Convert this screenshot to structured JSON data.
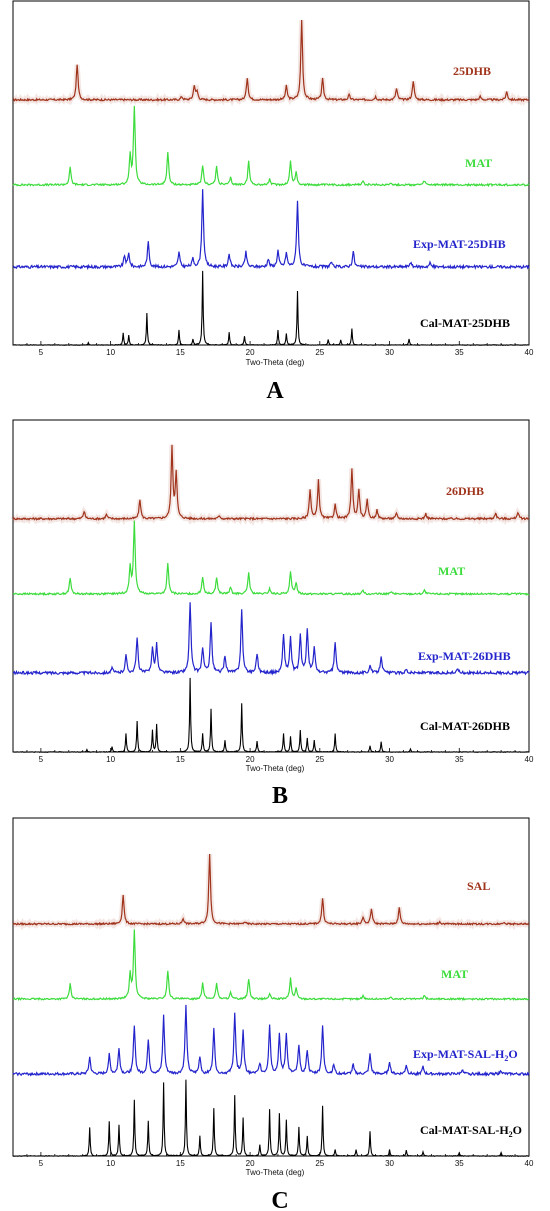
{
  "chart_data": [
    {
      "type": "line",
      "panel_label": "A",
      "xlabel": "Two-Theta (deg)",
      "xlim": [
        3,
        40
      ],
      "x_ticks": [
        "5",
        "10",
        "15",
        "20",
        "25",
        "30",
        "35",
        "40"
      ],
      "grid": false,
      "series": [
        {
          "name": "25DHB",
          "color": "#a0331c",
          "peaks": [
            {
              "x": 7.6,
              "h": 0.45
            },
            {
              "x": 15.1,
              "h": 0.04
            },
            {
              "x": 16.0,
              "h": 0.18
            },
            {
              "x": 16.2,
              "h": 0.1
            },
            {
              "x": 19.8,
              "h": 0.28
            },
            {
              "x": 22.6,
              "h": 0.17
            },
            {
              "x": 23.7,
              "h": 1.0
            },
            {
              "x": 25.2,
              "h": 0.26
            },
            {
              "x": 27.1,
              "h": 0.06
            },
            {
              "x": 29.0,
              "h": 0.04
            },
            {
              "x": 30.5,
              "h": 0.14
            },
            {
              "x": 31.7,
              "h": 0.24
            },
            {
              "x": 36.5,
              "h": 0.04
            },
            {
              "x": 38.4,
              "h": 0.1
            }
          ]
        },
        {
          "name": "MAT",
          "color": "#3ddc3d",
          "peaks": [
            {
              "x": 7.1,
              "h": 0.22
            },
            {
              "x": 11.4,
              "h": 0.36
            },
            {
              "x": 11.7,
              "h": 1.0
            },
            {
              "x": 14.1,
              "h": 0.42
            },
            {
              "x": 16.6,
              "h": 0.24
            },
            {
              "x": 17.6,
              "h": 0.23
            },
            {
              "x": 18.6,
              "h": 0.09
            },
            {
              "x": 19.9,
              "h": 0.3
            },
            {
              "x": 21.4,
              "h": 0.07
            },
            {
              "x": 22.9,
              "h": 0.3
            },
            {
              "x": 23.3,
              "h": 0.16
            },
            {
              "x": 28.1,
              "h": 0.05
            },
            {
              "x": 30.1,
              "h": 0.03
            },
            {
              "x": 32.5,
              "h": 0.05
            }
          ]
        },
        {
          "name": "Exp-MAT-25DHB",
          "color": "#2424cc",
          "peaks": [
            {
              "x": 11.0,
              "h": 0.14
            },
            {
              "x": 11.3,
              "h": 0.17
            },
            {
              "x": 12.7,
              "h": 0.32
            },
            {
              "x": 14.9,
              "h": 0.19
            },
            {
              "x": 15.9,
              "h": 0.1
            },
            {
              "x": 16.6,
              "h": 1.0
            },
            {
              "x": 18.5,
              "h": 0.17
            },
            {
              "x": 19.7,
              "h": 0.19
            },
            {
              "x": 21.3,
              "h": 0.1
            },
            {
              "x": 22.0,
              "h": 0.21
            },
            {
              "x": 22.6,
              "h": 0.18
            },
            {
              "x": 23.4,
              "h": 0.86
            },
            {
              "x": 25.8,
              "h": 0.06
            },
            {
              "x": 27.4,
              "h": 0.2
            },
            {
              "x": 31.5,
              "h": 0.06
            },
            {
              "x": 32.9,
              "h": 0.05
            }
          ]
        },
        {
          "name": "Cal-MAT-25DHB",
          "color": "#000000",
          "peaks": [
            {
              "x": 8.4,
              "h": 0.03
            },
            {
              "x": 10.9,
              "h": 0.16
            },
            {
              "x": 11.3,
              "h": 0.13
            },
            {
              "x": 12.6,
              "h": 0.43
            },
            {
              "x": 14.9,
              "h": 0.2
            },
            {
              "x": 15.9,
              "h": 0.08
            },
            {
              "x": 16.6,
              "h": 1.0
            },
            {
              "x": 18.5,
              "h": 0.17
            },
            {
              "x": 19.6,
              "h": 0.12
            },
            {
              "x": 22.0,
              "h": 0.2
            },
            {
              "x": 22.6,
              "h": 0.15
            },
            {
              "x": 23.4,
              "h": 0.73
            },
            {
              "x": 25.6,
              "h": 0.07
            },
            {
              "x": 26.5,
              "h": 0.07
            },
            {
              "x": 27.3,
              "h": 0.22
            },
            {
              "x": 31.4,
              "h": 0.08
            }
          ]
        }
      ]
    },
    {
      "type": "line",
      "panel_label": "B",
      "xlabel": "Two-Theta (deg)",
      "xlim": [
        3,
        40
      ],
      "x_ticks": [
        "5",
        "10",
        "15",
        "20",
        "25",
        "30",
        "35",
        "40"
      ],
      "grid": false,
      "series": [
        {
          "name": "26DHB",
          "color": "#a0331c",
          "peaks": [
            {
              "x": 8.1,
              "h": 0.09
            },
            {
              "x": 9.7,
              "h": 0.05
            },
            {
              "x": 12.1,
              "h": 0.23
            },
            {
              "x": 14.4,
              "h": 0.85
            },
            {
              "x": 14.7,
              "h": 0.55
            },
            {
              "x": 17.8,
              "h": 0.04
            },
            {
              "x": 24.3,
              "h": 0.35
            },
            {
              "x": 24.9,
              "h": 0.46
            },
            {
              "x": 26.1,
              "h": 0.17
            },
            {
              "x": 27.3,
              "h": 0.6
            },
            {
              "x": 27.8,
              "h": 0.35
            },
            {
              "x": 28.4,
              "h": 0.22
            },
            {
              "x": 29.1,
              "h": 0.1
            },
            {
              "x": 30.5,
              "h": 0.06
            },
            {
              "x": 32.6,
              "h": 0.06
            },
            {
              "x": 37.6,
              "h": 0.07
            },
            {
              "x": 39.2,
              "h": 0.08
            }
          ]
        },
        {
          "name": "MAT",
          "color": "#3ddc3d",
          "peaks": [
            {
              "x": 7.1,
              "h": 0.22
            },
            {
              "x": 11.4,
              "h": 0.36
            },
            {
              "x": 11.7,
              "h": 1.0
            },
            {
              "x": 14.1,
              "h": 0.42
            },
            {
              "x": 16.6,
              "h": 0.24
            },
            {
              "x": 17.6,
              "h": 0.23
            },
            {
              "x": 18.6,
              "h": 0.09
            },
            {
              "x": 19.9,
              "h": 0.3
            },
            {
              "x": 21.4,
              "h": 0.07
            },
            {
              "x": 22.9,
              "h": 0.3
            },
            {
              "x": 23.3,
              "h": 0.16
            },
            {
              "x": 28.1,
              "h": 0.05
            },
            {
              "x": 30.1,
              "h": 0.03
            },
            {
              "x": 32.5,
              "h": 0.05
            }
          ]
        },
        {
          "name": "Exp-MAT-26DHB",
          "color": "#2424cc",
          "peaks": [
            {
              "x": 10.1,
              "h": 0.06
            },
            {
              "x": 11.1,
              "h": 0.23
            },
            {
              "x": 11.9,
              "h": 0.46
            },
            {
              "x": 13.0,
              "h": 0.33
            },
            {
              "x": 13.3,
              "h": 0.37
            },
            {
              "x": 15.7,
              "h": 0.93
            },
            {
              "x": 16.6,
              "h": 0.33
            },
            {
              "x": 17.2,
              "h": 0.66
            },
            {
              "x": 18.2,
              "h": 0.23
            },
            {
              "x": 19.4,
              "h": 0.83
            },
            {
              "x": 20.5,
              "h": 0.26
            },
            {
              "x": 22.4,
              "h": 0.51
            },
            {
              "x": 22.9,
              "h": 0.46
            },
            {
              "x": 23.6,
              "h": 0.5
            },
            {
              "x": 24.1,
              "h": 0.58
            },
            {
              "x": 24.6,
              "h": 0.33
            },
            {
              "x": 26.1,
              "h": 0.4
            },
            {
              "x": 28.6,
              "h": 0.1
            },
            {
              "x": 29.4,
              "h": 0.23
            },
            {
              "x": 31.2,
              "h": 0.05
            },
            {
              "x": 34.9,
              "h": 0.06
            }
          ]
        },
        {
          "name": "Cal-MAT-26DHB",
          "color": "#000000",
          "peaks": [
            {
              "x": 8.3,
              "h": 0.03
            },
            {
              "x": 10.1,
              "h": 0.07
            },
            {
              "x": 11.1,
              "h": 0.25
            },
            {
              "x": 11.9,
              "h": 0.42
            },
            {
              "x": 13.0,
              "h": 0.29
            },
            {
              "x": 13.3,
              "h": 0.37
            },
            {
              "x": 15.7,
              "h": 1.0
            },
            {
              "x": 16.6,
              "h": 0.25
            },
            {
              "x": 17.2,
              "h": 0.58
            },
            {
              "x": 18.2,
              "h": 0.16
            },
            {
              "x": 19.4,
              "h": 0.66
            },
            {
              "x": 20.5,
              "h": 0.15
            },
            {
              "x": 22.4,
              "h": 0.25
            },
            {
              "x": 22.9,
              "h": 0.21
            },
            {
              "x": 23.6,
              "h": 0.29
            },
            {
              "x": 24.1,
              "h": 0.19
            },
            {
              "x": 24.6,
              "h": 0.16
            },
            {
              "x": 26.1,
              "h": 0.25
            },
            {
              "x": 28.6,
              "h": 0.08
            },
            {
              "x": 29.4,
              "h": 0.14
            },
            {
              "x": 31.5,
              "h": 0.04
            }
          ]
        }
      ]
    },
    {
      "type": "line",
      "panel_label": "C",
      "xlabel": "Two-Theta (deg)",
      "xlim": [
        3,
        40
      ],
      "x_ticks": [
        "5",
        "10",
        "15",
        "20",
        "25",
        "30",
        "35",
        "40"
      ],
      "grid": false,
      "series": [
        {
          "name": "SAL",
          "color": "#a0331c",
          "peaks": [
            {
              "x": 10.9,
              "h": 0.42
            },
            {
              "x": 15.2,
              "h": 0.08
            },
            {
              "x": 17.1,
              "h": 1.0
            },
            {
              "x": 19.6,
              "h": 0.03
            },
            {
              "x": 25.2,
              "h": 0.37
            },
            {
              "x": 28.1,
              "h": 0.1
            },
            {
              "x": 28.7,
              "h": 0.22
            },
            {
              "x": 30.7,
              "h": 0.23
            },
            {
              "x": 33.6,
              "h": 0.03
            },
            {
              "x": 38.2,
              "h": 0.03
            }
          ]
        },
        {
          "name": "MAT",
          "color": "#3ddc3d",
          "peaks": [
            {
              "x": 7.1,
              "h": 0.22
            },
            {
              "x": 11.4,
              "h": 0.36
            },
            {
              "x": 11.7,
              "h": 1.0
            },
            {
              "x": 14.1,
              "h": 0.42
            },
            {
              "x": 16.6,
              "h": 0.24
            },
            {
              "x": 17.6,
              "h": 0.23
            },
            {
              "x": 18.6,
              "h": 0.09
            },
            {
              "x": 19.9,
              "h": 0.3
            },
            {
              "x": 21.4,
              "h": 0.07
            },
            {
              "x": 22.9,
              "h": 0.3
            },
            {
              "x": 23.3,
              "h": 0.16
            },
            {
              "x": 28.1,
              "h": 0.05
            },
            {
              "x": 30.1,
              "h": 0.03
            },
            {
              "x": 32.5,
              "h": 0.05
            }
          ]
        },
        {
          "name": "Exp-MAT-SAL-H2O",
          "color": "#2424cc",
          "peaks": [
            {
              "x": 8.5,
              "h": 0.24
            },
            {
              "x": 9.9,
              "h": 0.28
            },
            {
              "x": 10.6,
              "h": 0.36
            },
            {
              "x": 11.7,
              "h": 0.7
            },
            {
              "x": 12.7,
              "h": 0.48
            },
            {
              "x": 13.8,
              "h": 0.83
            },
            {
              "x": 15.4,
              "h": 0.97
            },
            {
              "x": 16.4,
              "h": 0.25
            },
            {
              "x": 17.4,
              "h": 0.64
            },
            {
              "x": 18.9,
              "h": 0.86
            },
            {
              "x": 19.5,
              "h": 0.62
            },
            {
              "x": 20.7,
              "h": 0.15
            },
            {
              "x": 21.4,
              "h": 0.7
            },
            {
              "x": 22.1,
              "h": 0.55
            },
            {
              "x": 22.6,
              "h": 0.58
            },
            {
              "x": 23.5,
              "h": 0.42
            },
            {
              "x": 24.1,
              "h": 0.34
            },
            {
              "x": 25.2,
              "h": 0.69
            },
            {
              "x": 26.0,
              "h": 0.13
            },
            {
              "x": 27.4,
              "h": 0.14
            },
            {
              "x": 28.6,
              "h": 0.28
            },
            {
              "x": 30.0,
              "h": 0.18
            },
            {
              "x": 31.2,
              "h": 0.13
            },
            {
              "x": 32.4,
              "h": 0.1
            },
            {
              "x": 35.2,
              "h": 0.06
            },
            {
              "x": 38.0,
              "h": 0.05
            }
          ]
        },
        {
          "name": "Cal-MAT-SAL-H2O",
          "color": "#000000",
          "peaks": [
            {
              "x": 8.5,
              "h": 0.36
            },
            {
              "x": 9.9,
              "h": 0.43
            },
            {
              "x": 10.6,
              "h": 0.39
            },
            {
              "x": 11.7,
              "h": 0.7
            },
            {
              "x": 12.7,
              "h": 0.44
            },
            {
              "x": 13.8,
              "h": 0.92
            },
            {
              "x": 15.4,
              "h": 0.95
            },
            {
              "x": 16.4,
              "h": 0.25
            },
            {
              "x": 17.4,
              "h": 0.6
            },
            {
              "x": 18.9,
              "h": 0.76
            },
            {
              "x": 19.5,
              "h": 0.48
            },
            {
              "x": 20.7,
              "h": 0.14
            },
            {
              "x": 21.4,
              "h": 0.58
            },
            {
              "x": 22.1,
              "h": 0.53
            },
            {
              "x": 22.6,
              "h": 0.45
            },
            {
              "x": 23.5,
              "h": 0.36
            },
            {
              "x": 24.1,
              "h": 0.25
            },
            {
              "x": 25.2,
              "h": 0.63
            },
            {
              "x": 26.1,
              "h": 0.08
            },
            {
              "x": 27.6,
              "h": 0.08
            },
            {
              "x": 28.6,
              "h": 0.31
            },
            {
              "x": 30.0,
              "h": 0.08
            },
            {
              "x": 31.2,
              "h": 0.07
            },
            {
              "x": 32.4,
              "h": 0.05
            },
            {
              "x": 35.0,
              "h": 0.04
            },
            {
              "x": 38.0,
              "h": 0.04
            }
          ]
        }
      ]
    }
  ]
}
